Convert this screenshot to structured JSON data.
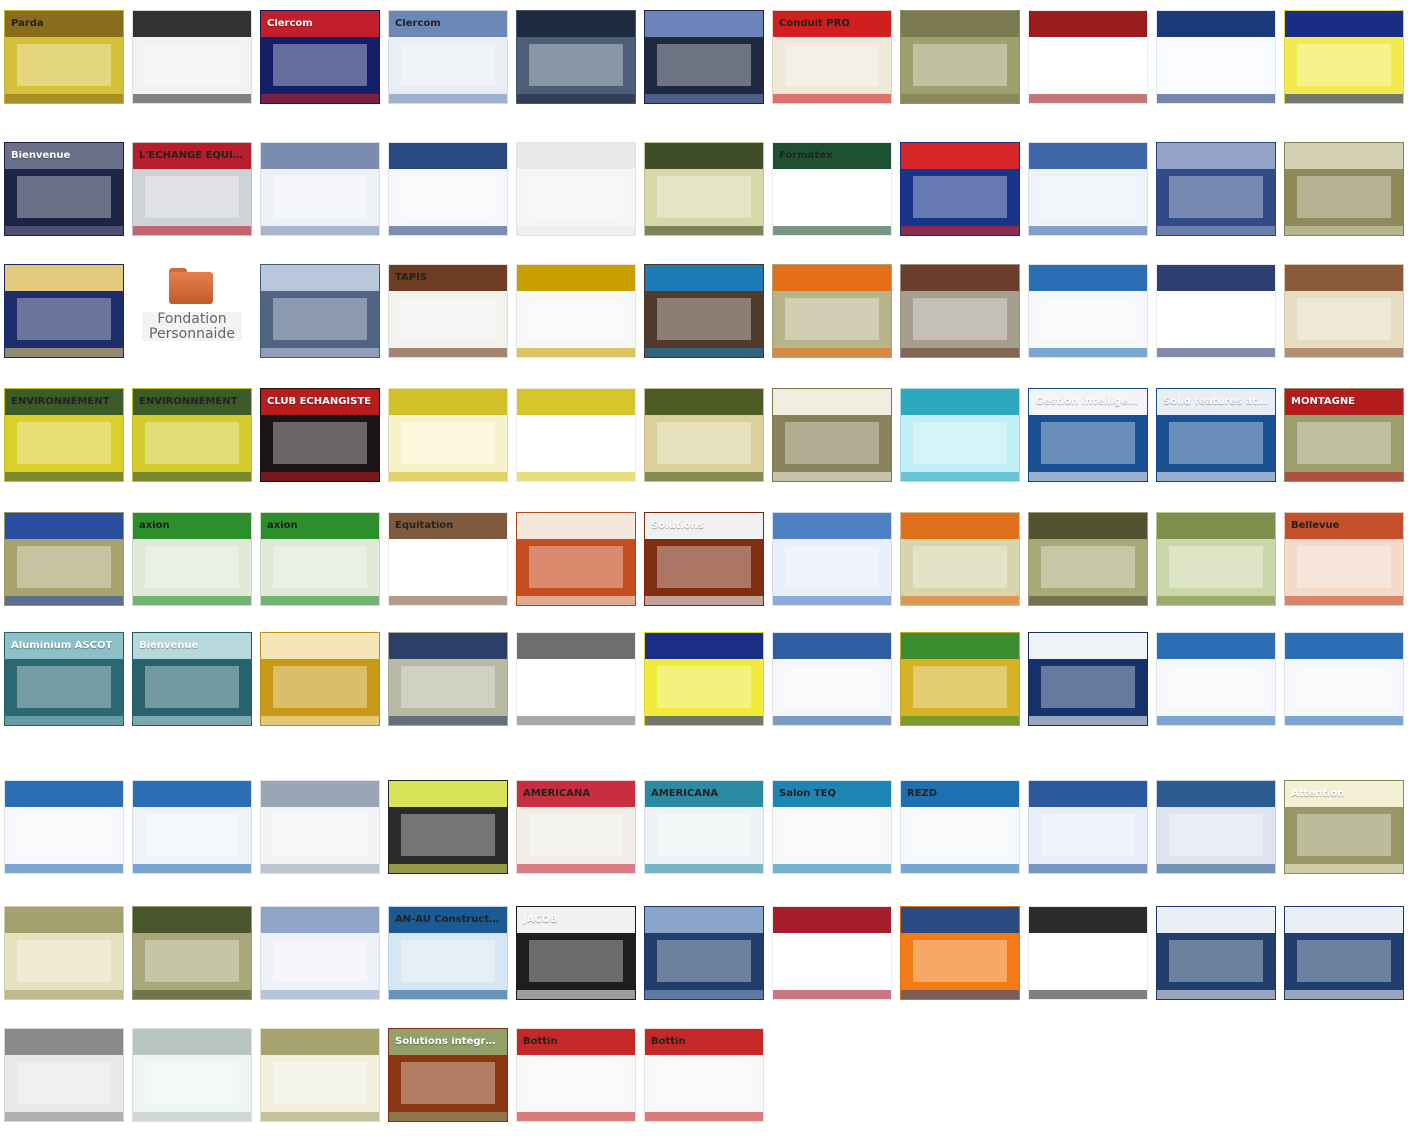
{
  "app": {
    "title": "Website portfolio contact sheet"
  },
  "gallery": {
    "rows": [
      {
        "items": [
          {
            "label": "Parda",
            "color": "#d6c03b",
            "accent": "#8a6d1c"
          },
          {
            "label": "",
            "color": "#f2f2f2",
            "accent": "#333333"
          },
          {
            "label": "Clercom",
            "color": "#121f66",
            "accent": "#c31f2a"
          },
          {
            "label": "Clercom",
            "color": "#e9eef5",
            "accent": "#6b89b7"
          },
          {
            "label": "",
            "color": "#4b5f79",
            "accent": "#1e2a3d"
          },
          {
            "label": "",
            "color": "#1f2940",
            "accent": "#6d84bb"
          },
          {
            "label": "Conduit PRO",
            "color": "#f0e8d8",
            "accent": "#d11f1f"
          },
          {
            "label": "",
            "color": "#a09f6e",
            "accent": "#7a794f"
          },
          {
            "label": "",
            "color": "#ffffff",
            "accent": "#9c1c1c"
          },
          {
            "label": "",
            "color": "#f8fbff",
            "accent": "#1a3a7a"
          },
          {
            "label": "",
            "color": "#ffffff",
            "accent": "#d8c200"
          },
          {
            "label": "",
            "color": "#f3ea4f",
            "accent": "#1a2d84"
          }
        ]
      },
      {
        "items": [
          {
            "label": "Bienvenue",
            "color": "#1d2446",
            "accent": "#6a6f8a"
          },
          {
            "label": "L'ÉCHANGE ÉQUITABLE",
            "color": "#cfd3d8",
            "accent": "#b81d2c"
          },
          {
            "label": "",
            "color": "#eef2f8",
            "accent": "#7a8cb0"
          },
          {
            "label": "",
            "color": "#f6f7fb",
            "accent": "#2b4a82"
          },
          {
            "label": "",
            "color": "#f4f5f7",
            "accent": "#e9e9e9"
          },
          {
            "label": "",
            "color": "#d8d7a8",
            "accent": "#3f4d28"
          },
          {
            "label": "Formatex",
            "color": "#ffffff",
            "accent": "#1e5131"
          },
          {
            "label": "",
            "color": "#18338a",
            "accent": "#d6262a"
          },
          {
            "label": "",
            "color": "#edf3fb",
            "accent": "#3c66a8"
          },
          {
            "label": "",
            "color": "#314b87",
            "accent": "#93a2c7"
          },
          {
            "label": "",
            "color": "#8e8a59",
            "accent": "#d3d0b4"
          }
        ]
      },
      {
        "items": [
          {
            "label": "",
            "color": "#1d2c6a",
            "accent": "#e3c97c"
          },
          {
            "type": "folder",
            "label": "Fondation Personnaide",
            "color": "#ffffff",
            "accent": "#cf6a3e"
          },
          {
            "label": "",
            "color": "#4e6482",
            "accent": "#b9c7da"
          },
          {
            "label": "TAPIS",
            "color": "#f4f2ee",
            "accent": "#6e3c20"
          },
          {
            "label": "",
            "color": "#f7f7f7",
            "accent": "#caa000"
          },
          {
            "label": "",
            "color": "#4f3a2c",
            "accent": "#1c7bb4"
          },
          {
            "label": "",
            "color": "#b8b48a",
            "accent": "#e46f1a"
          },
          {
            "label": "",
            "color": "#a69f90",
            "accent": "#6b3f2b"
          },
          {
            "label": "",
            "color": "#f5f7fa",
            "accent": "#2a6fb3"
          },
          {
            "label": "",
            "color": "#ffffff",
            "accent": "#2e3f72"
          },
          {
            "label": "",
            "color": "#e7dcc2",
            "accent": "#8a5a3a"
          }
        ]
      },
      {
        "items": [
          {
            "label": "ENVIRONNEMENT",
            "color": "#dacf2b",
            "accent": "#3b5b28"
          },
          {
            "label": "ENVIRONNEMENT",
            "color": "#d4cb2e",
            "accent": "#3b5b28"
          },
          {
            "label": "CLUB ÉCHANGISTE",
            "color": "#1b1414",
            "accent": "#b71d1d"
          },
          {
            "label": "",
            "color": "#f7f3c9",
            "accent": "#d3bf2a"
          },
          {
            "label": "",
            "color": "#ffffff",
            "accent": "#d7c62a"
          },
          {
            "label": "",
            "color": "#d9d09a",
            "accent": "#4c5c24"
          },
          {
            "label": "",
            "color": "#88825a",
            "accent": "#f1ede0"
          },
          {
            "label": "",
            "color": "#bfeef4",
            "accent": "#2da9bf"
          },
          {
            "label": "Gestion intelligente",
            "color": "#1a4f92",
            "accent": "#f2f4f8"
          },
          {
            "label": "Solid features at work",
            "color": "#1a4f92",
            "accent": "#e8eef7"
          },
          {
            "label": "MONTAGNE",
            "color": "#9e9d6d",
            "accent": "#b31d1d"
          }
        ]
      },
      {
        "items": [
          {
            "label": "",
            "color": "#a6a36e",
            "accent": "#2a4da1"
          },
          {
            "label": "axion",
            "color": "#dfe9d9",
            "accent": "#2c8f2c"
          },
          {
            "label": "axion",
            "color": "#dfe9d9",
            "accent": "#2c8f2c"
          },
          {
            "label": "Équitation",
            "color": "#ffffff",
            "accent": "#7e5b3f"
          },
          {
            "label": "",
            "color": "#c64d1f",
            "accent": "#f6e7dd"
          },
          {
            "label": "Solutions",
            "color": "#7f2e12",
            "accent": "#f0f0f0"
          },
          {
            "label": "",
            "color": "#e8f0fb",
            "accent": "#4f80c4"
          },
          {
            "label": "",
            "color": "#d8d5aa",
            "accent": "#e06f1b"
          },
          {
            "label": "",
            "color": "#a9a978",
            "accent": "#505230"
          },
          {
            "label": "",
            "color": "#cbd7a8",
            "accent": "#7d8f4a"
          },
          {
            "label": "Bellevue",
            "color": "#f5d9c9",
            "accent": "#c34f2b"
          }
        ]
      },
      {
        "items": [
          {
            "label": "Aluminium ASCOT",
            "color": "#2b6873",
            "accent": "#8ec1c7"
          },
          {
            "label": "Bienvenue",
            "color": "#28636d",
            "accent": "#b9d8dd"
          },
          {
            "label": "",
            "color": "#c99a18",
            "accent": "#f6e6b7"
          },
          {
            "label": "",
            "color": "#b8b9a3",
            "accent": "#2c3f68"
          },
          {
            "label": "",
            "color": "#ffffff",
            "accent": "#6e6e6e"
          },
          {
            "label": "",
            "color": "#f0ea3a",
            "accent": "#1c2d85"
          },
          {
            "label": "",
            "color": "#f5f7fa",
            "accent": "#2f5ea1"
          },
          {
            "label": "",
            "color": "#d6b326",
            "accent": "#3b8c2f"
          },
          {
            "label": "",
            "color": "#16326a",
            "accent": "#f0f3f8"
          },
          {
            "label": "",
            "color": "#f5f7fa",
            "accent": "#2b6eb5"
          },
          {
            "label": "",
            "color": "#f5f7fa",
            "accent": "#2b6eb5"
          }
        ]
      },
      {
        "items": [
          {
            "label": "",
            "color": "#f5f7fa",
            "accent": "#2b6eb5"
          },
          {
            "label": "",
            "color": "#eef3fa",
            "accent": "#2b6eb5"
          },
          {
            "label": "",
            "color": "#f3f4f6",
            "accent": "#9aa6b6"
          },
          {
            "label": "",
            "color": "#2b2b2b",
            "accent": "#d9e35a"
          },
          {
            "label": "AMERICANA",
            "color": "#f0ede8",
            "accent": "#c82e3d"
          },
          {
            "label": "AMERICANA",
            "color": "#edf3f5",
            "accent": "#2b8ba3"
          },
          {
            "label": "Salon TEQ",
            "color": "#f7f7f7",
            "accent": "#1d86b5"
          },
          {
            "label": "REZD",
            "color": "#f4f7fb",
            "accent": "#1f6fb3"
          },
          {
            "label": "",
            "color": "#e8eef7",
            "accent": "#2c5aa0"
          },
          {
            "label": "",
            "color": "#dde4ee",
            "accent": "#2b5c8f"
          },
          {
            "label": "Attention",
            "color": "#989765",
            "accent": "#f3f0d6"
          }
        ]
      },
      {
        "items": [
          {
            "label": "",
            "color": "#e6e1bf",
            "accent": "#a3a26f"
          },
          {
            "label": "",
            "color": "#a9a77a",
            "accent": "#49552a"
          },
          {
            "label": "",
            "color": "#eef2f8",
            "accent": "#8fa6c9"
          },
          {
            "label": "AN-AU Construction",
            "color": "#d7e6f4",
            "accent": "#1c5a93"
          },
          {
            "label": "JACOB",
            "color": "#1e1e1e",
            "accent": "#f1f1f1"
          },
          {
            "label": "",
            "color": "#203e6c",
            "accent": "#8ba4c9"
          },
          {
            "label": "",
            "color": "#ffffff",
            "accent": "#a51d2d"
          },
          {
            "label": "",
            "color": "#f37a14",
            "accent": "#2b4a82"
          },
          {
            "label": "",
            "color": "#ffffff",
            "accent": "#2b2b2b"
          },
          {
            "label": "",
            "color": "#203e6c",
            "accent": "#e9eef5"
          },
          {
            "label": "",
            "color": "#1f3d6e",
            "accent": "#e9eef5"
          }
        ]
      },
      {
        "items": [
          {
            "label": "",
            "color": "#e8e8e8",
            "accent": "#8a8a8a"
          },
          {
            "label": "",
            "color": "#eef5f2",
            "accent": "#b8c5bf"
          },
          {
            "label": "",
            "color": "#f2f0dd",
            "accent": "#a7a36e"
          },
          {
            "label": "Solutions intégrées",
            "color": "#8b3612",
            "accent": "#93a06a"
          },
          {
            "label": "Bottin",
            "color": "#f7f7f7",
            "accent": "#c62828"
          },
          {
            "label": "Bottin",
            "color": "#f7f7f7",
            "accent": "#c62828"
          }
        ]
      }
    ]
  }
}
